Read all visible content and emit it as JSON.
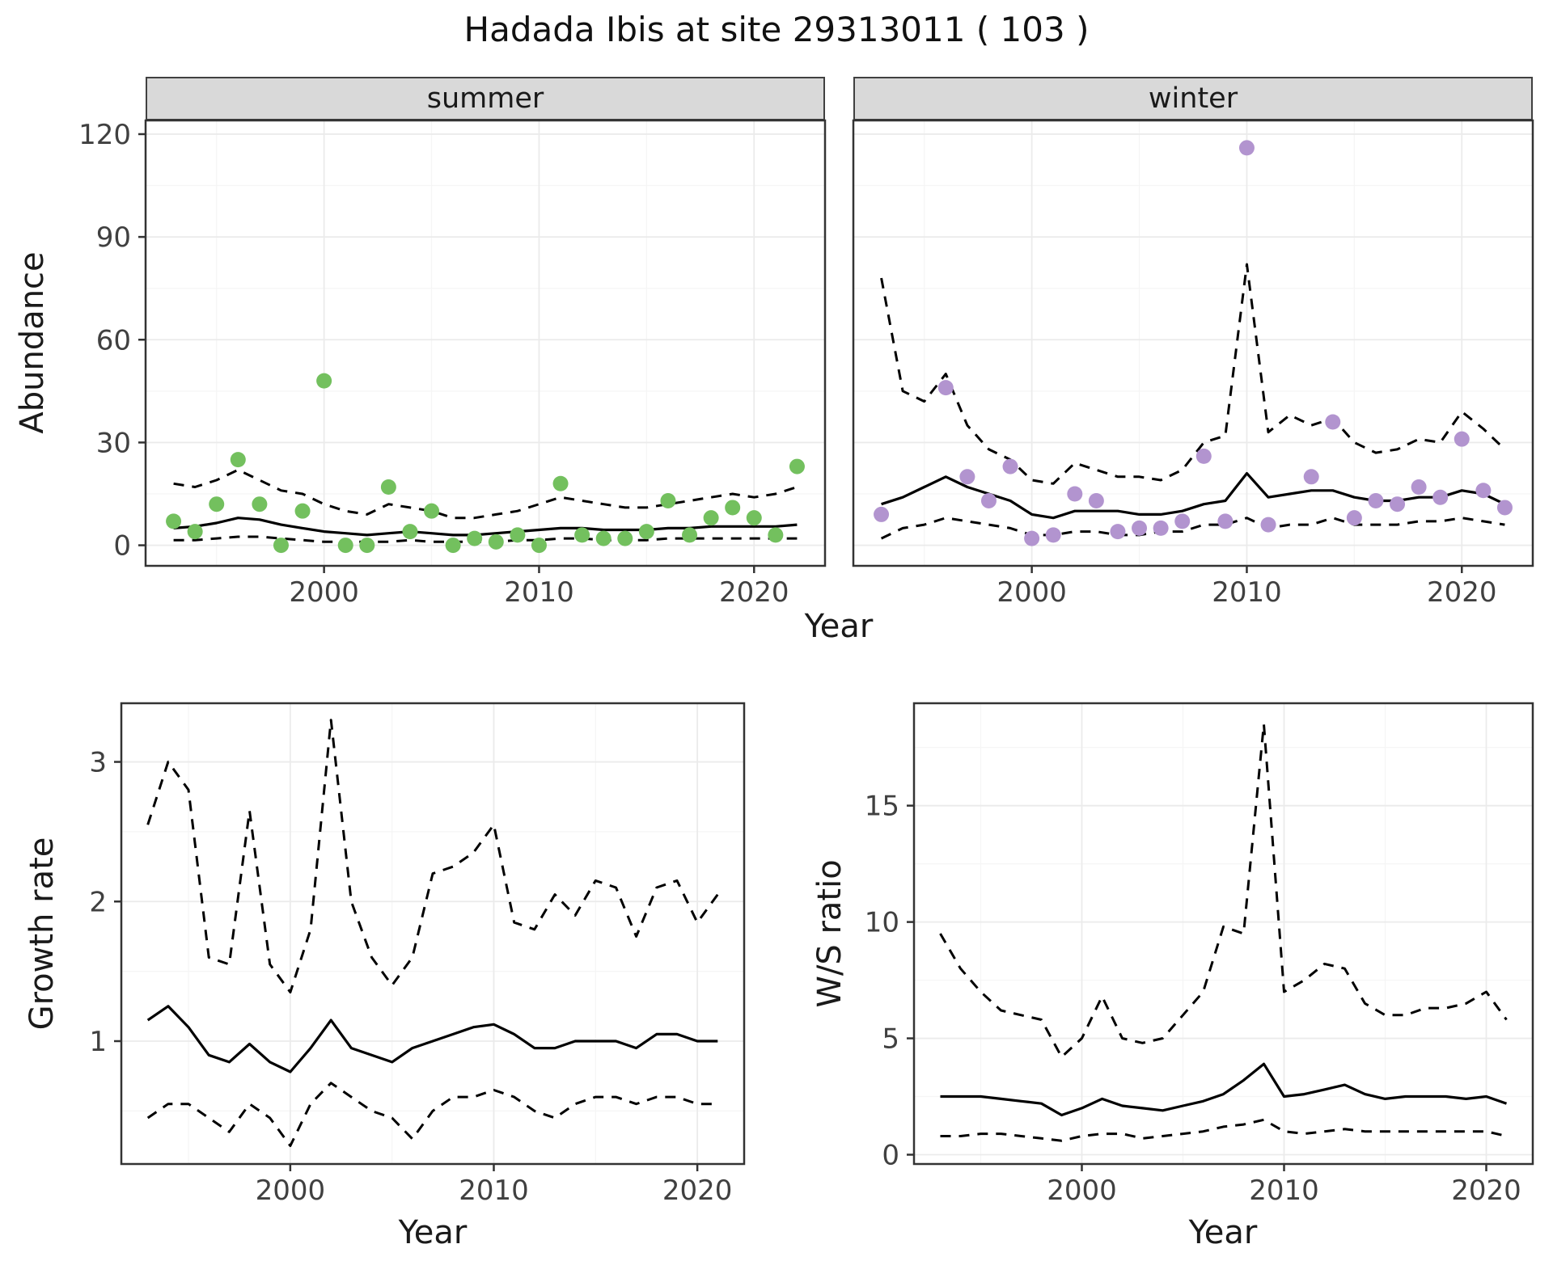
{
  "title": "Hadada Ibis at site 29313011 ( 103 )",
  "labels": {
    "abundance": "Abundance",
    "year": "Year",
    "growth_rate": "Growth rate",
    "ws_ratio": "W/S ratio"
  },
  "colors": {
    "summer_point": "#73c05e",
    "winter_point": "#b294cf",
    "line": "#000000",
    "grid_major": "#ebebeb",
    "grid_minor": "#f5f5f5",
    "strip_bg": "#d9d9d9",
    "panel_border": "#333333",
    "tick_text": "#404040",
    "title_text": "#111111"
  },
  "chart_data": [
    {
      "name": "abundance-summer",
      "type": "scatter",
      "facet_label": "summer",
      "ylabel": "Abundance",
      "xlabel": "Year",
      "xlim": [
        1991.7,
        2023.3
      ],
      "ylim": [
        -6,
        124
      ],
      "xticks": [
        2000,
        2010,
        2020
      ],
      "yticks": [
        0,
        30,
        60,
        90,
        120
      ],
      "xminor": [
        1995,
        2005,
        2015
      ],
      "yminor": [
        15,
        45,
        75,
        105
      ],
      "point_color": "#73c05e",
      "x": [
        1993,
        1994,
        1995,
        1996,
        1997,
        1998,
        1999,
        2000,
        2001,
        2002,
        2003,
        2004,
        2005,
        2006,
        2007,
        2008,
        2009,
        2010,
        2011,
        2012,
        2013,
        2014,
        2015,
        2016,
        2017,
        2018,
        2019,
        2020,
        2021,
        2022
      ],
      "fit": [
        5,
        5.5,
        6.5,
        8,
        7.5,
        6,
        5,
        4,
        3.5,
        3,
        3.5,
        4,
        3.5,
        3,
        3,
        3.5,
        4,
        4.5,
        5,
        5,
        4.5,
        4.5,
        4.5,
        5,
        5,
        5.5,
        5.5,
        5.5,
        5.5,
        6
      ],
      "upper": [
        18,
        17,
        19,
        22,
        19,
        16,
        15,
        12,
        10,
        9,
        12,
        11,
        10,
        8,
        8,
        9,
        10,
        12,
        14,
        13,
        12,
        11,
        11,
        12,
        13,
        14,
        15,
        14,
        15,
        17
      ],
      "lower": [
        1.5,
        1.5,
        2,
        2.5,
        2.5,
        2,
        1.5,
        1,
        1,
        1,
        1,
        1.5,
        1,
        1,
        1,
        1,
        1.5,
        1.5,
        2,
        2,
        1.5,
        1.5,
        1.5,
        2,
        2,
        2,
        2,
        2,
        2,
        2
      ],
      "points": [
        [
          1993,
          7
        ],
        [
          1994,
          4
        ],
        [
          1995,
          12
        ],
        [
          1996,
          25
        ],
        [
          1997,
          12
        ],
        [
          1998,
          0
        ],
        [
          1999,
          10
        ],
        [
          2000,
          48
        ],
        [
          2001,
          0
        ],
        [
          2002,
          0
        ],
        [
          2003,
          17
        ],
        [
          2004,
          4
        ],
        [
          2005,
          10
        ],
        [
          2006,
          0
        ],
        [
          2007,
          2
        ],
        [
          2008,
          1
        ],
        [
          2009,
          3
        ],
        [
          2010,
          0
        ],
        [
          2011,
          18
        ],
        [
          2012,
          3
        ],
        [
          2013,
          2
        ],
        [
          2014,
          2
        ],
        [
          2015,
          4
        ],
        [
          2016,
          13
        ],
        [
          2017,
          3
        ],
        [
          2018,
          8
        ],
        [
          2019,
          11
        ],
        [
          2020,
          8
        ],
        [
          2021,
          3
        ],
        [
          2022,
          23
        ]
      ]
    },
    {
      "name": "abundance-winter",
      "type": "scatter",
      "facet_label": "winter",
      "ylabel": "Abundance",
      "xlabel": "Year",
      "xlim": [
        1991.7,
        2023.3
      ],
      "ylim": [
        -6,
        124
      ],
      "xticks": [
        2000,
        2010,
        2020
      ],
      "yticks": [
        0,
        30,
        60,
        90,
        120
      ],
      "xminor": [
        1995,
        2005,
        2015
      ],
      "yminor": [
        15,
        45,
        75,
        105
      ],
      "point_color": "#b294cf",
      "x": [
        1993,
        1994,
        1995,
        1996,
        1997,
        1998,
        1999,
        2000,
        2001,
        2002,
        2003,
        2004,
        2005,
        2006,
        2007,
        2008,
        2009,
        2010,
        2011,
        2012,
        2013,
        2014,
        2015,
        2016,
        2017,
        2018,
        2019,
        2020,
        2021,
        2022
      ],
      "fit": [
        12,
        14,
        17,
        20,
        17,
        15,
        13,
        9,
        8,
        10,
        10,
        10,
        9,
        9,
        10,
        12,
        13,
        21,
        14,
        15,
        16,
        16,
        14,
        13,
        13,
        14,
        14,
        16,
        15,
        12
      ],
      "upper": [
        78,
        45,
        42,
        50,
        35,
        28,
        25,
        19,
        18,
        24,
        22,
        20,
        20,
        19,
        22,
        30,
        32,
        82,
        33,
        38,
        35,
        37,
        30,
        27,
        28,
        31,
        30,
        39,
        34,
        28
      ],
      "lower": [
        2,
        5,
        6,
        8,
        7,
        6,
        5,
        3,
        3,
        4,
        4,
        3,
        3,
        4,
        4,
        6,
        6,
        8,
        5,
        6,
        6,
        8,
        6,
        6,
        6,
        7,
        7,
        8,
        7,
        6
      ],
      "points": [
        [
          1993,
          9
        ],
        [
          1996,
          46
        ],
        [
          1997,
          20
        ],
        [
          1998,
          13
        ],
        [
          1999,
          23
        ],
        [
          2000,
          2
        ],
        [
          2001,
          3
        ],
        [
          2002,
          15
        ],
        [
          2003,
          13
        ],
        [
          2004,
          4
        ],
        [
          2005,
          5
        ],
        [
          2006,
          5
        ],
        [
          2007,
          7
        ],
        [
          2008,
          26
        ],
        [
          2009,
          7
        ],
        [
          2010,
          116
        ],
        [
          2011,
          6
        ],
        [
          2013,
          20
        ],
        [
          2014,
          36
        ],
        [
          2015,
          8
        ],
        [
          2016,
          13
        ],
        [
          2017,
          12
        ],
        [
          2018,
          17
        ],
        [
          2019,
          14
        ],
        [
          2020,
          31
        ],
        [
          2021,
          16
        ],
        [
          2022,
          11
        ]
      ]
    },
    {
      "name": "growth-rate",
      "type": "line",
      "ylabel": "Growth rate",
      "xlabel": "Year",
      "xlim": [
        1991.7,
        2022.3
      ],
      "ylim": [
        0.12,
        3.42
      ],
      "xticks": [
        2000,
        2010,
        2020
      ],
      "yticks": [
        1,
        2,
        3
      ],
      "xminor": [
        1995,
        2005,
        2015
      ],
      "yminor": [
        0.5,
        1.5,
        2.5
      ],
      "x": [
        1993,
        1994,
        1995,
        1996,
        1997,
        1998,
        1999,
        2000,
        2001,
        2002,
        2003,
        2004,
        2005,
        2006,
        2007,
        2008,
        2009,
        2010,
        2011,
        2012,
        2013,
        2014,
        2015,
        2016,
        2017,
        2018,
        2019,
        2020,
        2021
      ],
      "fit": [
        1.15,
        1.25,
        1.1,
        0.9,
        0.85,
        0.98,
        0.85,
        0.78,
        0.95,
        1.15,
        0.95,
        0.9,
        0.85,
        0.95,
        1.0,
        1.05,
        1.1,
        1.12,
        1.05,
        0.95,
        0.95,
        1.0,
        1.0,
        1.0,
        0.95,
        1.05,
        1.05,
        1.0,
        1.0
      ],
      "upper": [
        2.55,
        3.0,
        2.8,
        1.6,
        1.55,
        2.65,
        1.55,
        1.35,
        1.8,
        3.3,
        2.0,
        1.6,
        1.4,
        1.6,
        2.2,
        2.25,
        2.35,
        2.55,
        1.85,
        1.8,
        2.05,
        1.9,
        2.15,
        2.1,
        1.75,
        2.1,
        2.15,
        1.85,
        2.05
      ],
      "lower": [
        0.45,
        0.55,
        0.55,
        0.45,
        0.35,
        0.55,
        0.45,
        0.25,
        0.55,
        0.7,
        0.6,
        0.5,
        0.45,
        0.3,
        0.5,
        0.6,
        0.6,
        0.65,
        0.6,
        0.5,
        0.45,
        0.55,
        0.6,
        0.6,
        0.55,
        0.6,
        0.6,
        0.55,
        0.55
      ]
    },
    {
      "name": "ws-ratio",
      "type": "line",
      "ylabel": "W/S ratio",
      "xlabel": "Year",
      "xlim": [
        1991.7,
        2022.3
      ],
      "ylim": [
        -0.4,
        19.4
      ],
      "xticks": [
        2000,
        2010,
        2020
      ],
      "yticks": [
        0,
        5,
        10,
        15
      ],
      "xminor": [
        1995,
        2005,
        2015
      ],
      "yminor": [
        2.5,
        7.5,
        12.5,
        17.5
      ],
      "x": [
        1993,
        1994,
        1995,
        1996,
        1997,
        1998,
        1999,
        2000,
        2001,
        2002,
        2003,
        2004,
        2005,
        2006,
        2007,
        2008,
        2009,
        2010,
        2011,
        2012,
        2013,
        2014,
        2015,
        2016,
        2017,
        2018,
        2019,
        2020,
        2021
      ],
      "fit": [
        2.5,
        2.5,
        2.5,
        2.4,
        2.3,
        2.2,
        1.7,
        2.0,
        2.4,
        2.1,
        2.0,
        1.9,
        2.1,
        2.3,
        2.6,
        3.2,
        3.9,
        2.5,
        2.6,
        2.8,
        3.0,
        2.6,
        2.4,
        2.5,
        2.5,
        2.5,
        2.4,
        2.5,
        2.2
      ],
      "upper": [
        9.5,
        8.0,
        7.0,
        6.2,
        6.0,
        5.8,
        4.2,
        5.0,
        6.8,
        5.0,
        4.8,
        5.0,
        6.0,
        7.0,
        9.8,
        9.5,
        18.5,
        7.0,
        7.5,
        8.2,
        8.0,
        6.5,
        6.0,
        6.0,
        6.3,
        6.3,
        6.5,
        7.0,
        5.8
      ],
      "lower": [
        0.8,
        0.8,
        0.9,
        0.9,
        0.8,
        0.7,
        0.6,
        0.8,
        0.9,
        0.9,
        0.7,
        0.8,
        0.9,
        1.0,
        1.2,
        1.3,
        1.5,
        1.0,
        0.9,
        1.0,
        1.1,
        1.0,
        1.0,
        1.0,
        1.0,
        1.0,
        1.0,
        1.0,
        0.8
      ]
    }
  ]
}
